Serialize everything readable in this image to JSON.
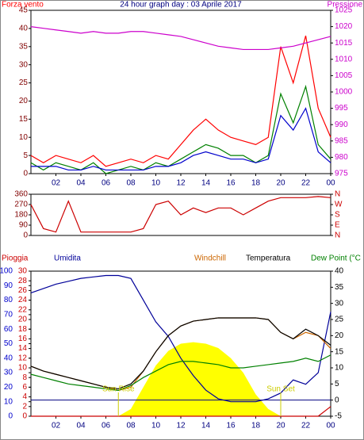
{
  "chart_data": [
    {
      "type": "line",
      "title": "24 hour graph day : 03 Aprile 2017",
      "ylabel": "Forza vento",
      "y2label": "Pressione",
      "xlim": [
        0,
        24
      ],
      "xticks": [
        {
          "value": 2,
          "label": "02"
        },
        {
          "value": 4,
          "label": "04"
        },
        {
          "value": 6,
          "label": "06"
        },
        {
          "value": 8,
          "label": "08"
        },
        10,
        12,
        14,
        16,
        18,
        20,
        22,
        {
          "value": 24,
          "label": "00"
        }
      ],
      "ylim": [
        0,
        45
      ],
      "yticks": [
        0,
        5,
        10,
        15,
        20,
        25,
        30,
        35,
        40,
        45
      ],
      "ytick_color": "#800000",
      "y2lim": [
        975,
        1025
      ],
      "y2ticks": [
        975,
        980,
        985,
        990,
        995,
        1000,
        1005,
        1010,
        1015,
        1020,
        1025
      ],
      "y2tick_color": "#cc00cc",
      "x": [
        0,
        1,
        2,
        3,
        4,
        5,
        6,
        7,
        8,
        9,
        10,
        11,
        12,
        13,
        14,
        15,
        16,
        17,
        18,
        19,
        20,
        21,
        22,
        23,
        24
      ],
      "series": [
        {
          "color": "#ff0000",
          "values": [
            5,
            3,
            5,
            4,
            3,
            5,
            2,
            3,
            4,
            3,
            5,
            4,
            8,
            12,
            15,
            12,
            10,
            9,
            8,
            10,
            35,
            25,
            38,
            18,
            10
          ]
        },
        {
          "color": "#008000",
          "values": [
            3,
            1,
            3,
            2,
            1,
            3,
            0,
            1,
            2,
            1,
            3,
            2,
            4,
            6,
            8,
            7,
            5,
            5,
            3,
            5,
            22,
            14,
            24,
            8,
            4
          ]
        },
        {
          "color": "#0000cc",
          "values": [
            2,
            2,
            2,
            1,
            1,
            2,
            1,
            1,
            1,
            1,
            2,
            2,
            3,
            5,
            6,
            5,
            4,
            4,
            3,
            4,
            16,
            12,
            18,
            6,
            3
          ]
        },
        {
          "color": "#cc00cc",
          "axis": "y2",
          "values": [
            1020,
            1019.5,
            1019,
            1018.5,
            1018,
            1018.5,
            1018,
            1018,
            1018.5,
            1018.5,
            1018,
            1017.5,
            1017,
            1016,
            1015,
            1014,
            1013.5,
            1013,
            1013,
            1013,
            1013.5,
            1014,
            1015,
            1016,
            1017
          ]
        }
      ]
    },
    {
      "type": "line",
      "xlim": [
        0,
        24
      ],
      "ylim": [
        0,
        360
      ],
      "yticks": [
        0,
        90,
        180,
        270,
        360
      ],
      "ytick_color": "#800000",
      "y2ticks": [
        {
          "value": 360,
          "label": "N"
        },
        {
          "value": 270,
          "label": "W"
        },
        {
          "value": 180,
          "label": "S"
        },
        {
          "value": 90,
          "label": "E"
        },
        {
          "value": 0,
          "label": "N"
        }
      ],
      "y2tick_color": "#cc0000",
      "x": [
        0,
        1,
        2,
        3,
        4,
        5,
        6,
        7,
        8,
        9,
        10,
        11,
        12,
        13,
        14,
        15,
        16,
        17,
        18,
        19,
        20,
        21,
        22,
        23,
        24
      ],
      "series": [
        {
          "color": "#cc0000",
          "values": [
            270,
            60,
            30,
            300,
            30,
            30,
            30,
            30,
            30,
            60,
            270,
            300,
            180,
            240,
            200,
            240,
            240,
            180,
            240,
            300,
            330,
            330,
            330,
            340,
            330
          ]
        }
      ]
    },
    {
      "type": "line",
      "xlim": [
        0,
        24
      ],
      "xticks": [
        {
          "value": 2,
          "label": "02"
        },
        {
          "value": 4,
          "label": "04"
        },
        {
          "value": 6,
          "label": "06"
        },
        {
          "value": 8,
          "label": "08"
        },
        10,
        12,
        14,
        16,
        18,
        20,
        22,
        {
          "value": 24,
          "label": "00"
        }
      ],
      "ylim": [
        0,
        100
      ],
      "yticks": [
        0,
        10,
        20,
        30,
        40,
        50,
        60,
        70,
        80,
        90,
        100
      ],
      "ytick_color": "#0000cc",
      "y3lim": [
        0,
        30
      ],
      "y3ticks": [
        0,
        2,
        4,
        6,
        8,
        10,
        12,
        14,
        16,
        18,
        20,
        22,
        24,
        26,
        28,
        30
      ],
      "y3tick_color": "#cc0000",
      "y2lim": [
        -5,
        40
      ],
      "y2ticks": [
        -5,
        0,
        5,
        10,
        15,
        20,
        25,
        30,
        35,
        40
      ],
      "y2tick_color": "#000000",
      "y2_ref_line": 0,
      "annotations": [
        {
          "text": "Sun Rise",
          "x": 7
        },
        {
          "text": "Sun Set",
          "x": 20
        }
      ],
      "x": [
        0,
        1,
        2,
        3,
        4,
        5,
        6,
        7,
        8,
        9,
        10,
        11,
        12,
        13,
        14,
        15,
        16,
        17,
        18,
        19,
        20,
        21,
        22,
        23,
        24
      ],
      "series": [
        {
          "name": "Pioggia",
          "color": "#cc0000",
          "axis": "y3",
          "values": [
            0,
            0,
            0,
            0,
            0,
            0,
            0,
            0,
            0,
            0,
            0,
            0,
            0,
            0,
            0,
            0,
            0,
            0,
            0,
            0,
            0,
            0,
            0,
            0,
            2
          ]
        },
        {
          "name": "Umidita",
          "color": "#000099",
          "values": [
            85,
            88,
            91,
            93,
            95,
            96,
            97,
            97,
            95,
            80,
            65,
            55,
            40,
            28,
            18,
            12,
            10,
            10,
            10,
            12,
            16,
            25,
            22,
            30,
            72
          ]
        },
        {
          "name": "Windchill",
          "color": "#cc6600",
          "axis": "y2",
          "values": [
            10.5,
            9,
            8,
            7,
            6,
            5,
            4,
            3,
            4,
            9,
            15,
            20,
            23,
            24.5,
            25,
            25.5,
            25.5,
            25.5,
            25.5,
            25,
            21,
            19,
            21,
            20,
            16
          ]
        },
        {
          "name": "Temperatura",
          "color": "#000000",
          "axis": "y2",
          "values": [
            10.5,
            9,
            8,
            7,
            6,
            5,
            4,
            3.5,
            5,
            9,
            15,
            20,
            23,
            24.5,
            25,
            25.5,
            25.5,
            25.5,
            25.5,
            25,
            21,
            19,
            22,
            20,
            17
          ]
        },
        {
          "name": "Dew Point (°C",
          "color": "#008000",
          "axis": "y2",
          "values": [
            8,
            7,
            6,
            5,
            4.5,
            4,
            3.5,
            3,
            4.5,
            7,
            9,
            11,
            12,
            12,
            11.5,
            11,
            10,
            10,
            10.5,
            11,
            11.5,
            12,
            13,
            12,
            14
          ]
        },
        {
          "color": "#ffff00",
          "fill": true,
          "values": [
            0,
            0,
            0,
            0,
            0,
            0,
            0,
            0,
            5,
            20,
            35,
            45,
            50,
            51,
            50,
            47,
            40,
            30,
            15,
            5,
            0,
            0,
            0,
            0,
            0
          ]
        }
      ]
    }
  ]
}
